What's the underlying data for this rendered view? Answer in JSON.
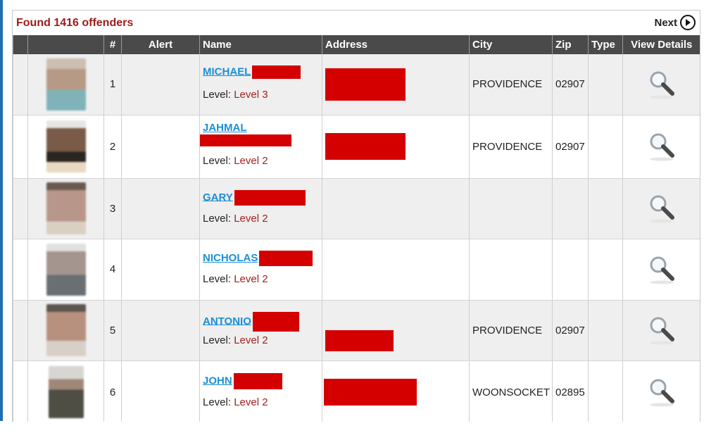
{
  "header": {
    "found_text": "Found 1416 offenders",
    "next_label": "Next"
  },
  "columns": [
    "",
    "",
    "#",
    "Alert",
    "Name",
    "Address",
    "City",
    "Zip",
    "Type",
    "View Details"
  ],
  "rows": [
    {
      "num": "1",
      "first": "MICHAEL",
      "level_label": "Level:",
      "level": "Level 3",
      "city": "PROVIDENCE",
      "zip": "02907",
      "photo_color": "#7fb3b8"
    },
    {
      "num": "2",
      "first": "JAHMAL",
      "level_label": "Level:",
      "level": "Level 2",
      "city": "PROVIDENCE",
      "zip": "02907",
      "photo_color": "#8a6a55"
    },
    {
      "num": "3",
      "first": "GARY",
      "level_label": "Level:",
      "level": "Level 2",
      "city": "",
      "zip": "",
      "photo_color": "#a48672"
    },
    {
      "num": "4",
      "first": "NICHOLAS",
      "level_label": "Level:",
      "level": "Level 2",
      "city": "",
      "zip": "",
      "photo_color": "#8f8f8f"
    },
    {
      "num": "5",
      "first": "ANTONIO",
      "level_label": "Level:",
      "level": "Level 2",
      "city": "PROVIDENCE",
      "zip": "02907",
      "photo_color": "#9b8070"
    },
    {
      "num": "6",
      "first": "JOHN",
      "level_label": "Level:",
      "level": "Level 2",
      "city": "WOONSOCKET",
      "zip": "02895",
      "photo_color": "#6b6b5c"
    }
  ],
  "colors": {
    "header_bg": "#4a4a4a",
    "found_text": "#9b1b1b",
    "link": "#1a8fd6",
    "level_value": "#a42020",
    "redaction": "#d40000"
  },
  "icons": {
    "next": "circle-arrow-right-icon",
    "view": "magnifier-icon"
  }
}
